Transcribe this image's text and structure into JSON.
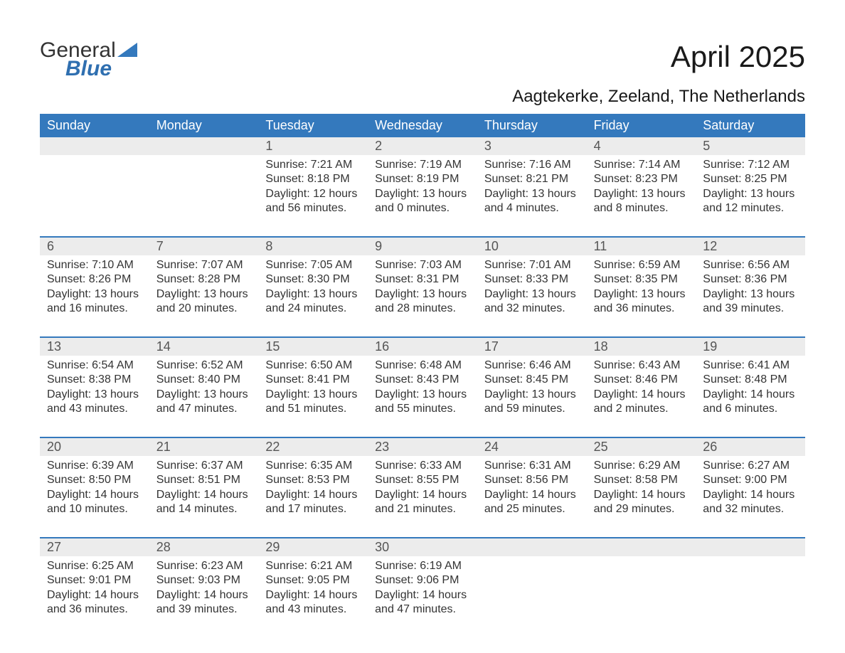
{
  "logo": {
    "word1": "General",
    "word2": "Blue",
    "tri_color": "#3479bd"
  },
  "title": "April 2025",
  "location": "Aagtekerke, Zeeland, The Netherlands",
  "colors": {
    "header_bg": "#3479bd",
    "header_fg": "#ffffff",
    "daynum_bg": "#ececec",
    "rule": "#3479bd",
    "text": "#333333",
    "daynum_text": "#555555"
  },
  "day_headers": [
    "Sunday",
    "Monday",
    "Tuesday",
    "Wednesday",
    "Thursday",
    "Friday",
    "Saturday"
  ],
  "weeks": [
    [
      null,
      null,
      {
        "n": "1",
        "sunrise": "7:21 AM",
        "sunset": "8:18 PM",
        "daylight": "12 hours and 56 minutes."
      },
      {
        "n": "2",
        "sunrise": "7:19 AM",
        "sunset": "8:19 PM",
        "daylight": "13 hours and 0 minutes."
      },
      {
        "n": "3",
        "sunrise": "7:16 AM",
        "sunset": "8:21 PM",
        "daylight": "13 hours and 4 minutes."
      },
      {
        "n": "4",
        "sunrise": "7:14 AM",
        "sunset": "8:23 PM",
        "daylight": "13 hours and 8 minutes."
      },
      {
        "n": "5",
        "sunrise": "7:12 AM",
        "sunset": "8:25 PM",
        "daylight": "13 hours and 12 minutes."
      }
    ],
    [
      {
        "n": "6",
        "sunrise": "7:10 AM",
        "sunset": "8:26 PM",
        "daylight": "13 hours and 16 minutes."
      },
      {
        "n": "7",
        "sunrise": "7:07 AM",
        "sunset": "8:28 PM",
        "daylight": "13 hours and 20 minutes."
      },
      {
        "n": "8",
        "sunrise": "7:05 AM",
        "sunset": "8:30 PM",
        "daylight": "13 hours and 24 minutes."
      },
      {
        "n": "9",
        "sunrise": "7:03 AM",
        "sunset": "8:31 PM",
        "daylight": "13 hours and 28 minutes."
      },
      {
        "n": "10",
        "sunrise": "7:01 AM",
        "sunset": "8:33 PM",
        "daylight": "13 hours and 32 minutes."
      },
      {
        "n": "11",
        "sunrise": "6:59 AM",
        "sunset": "8:35 PM",
        "daylight": "13 hours and 36 minutes."
      },
      {
        "n": "12",
        "sunrise": "6:56 AM",
        "sunset": "8:36 PM",
        "daylight": "13 hours and 39 minutes."
      }
    ],
    [
      {
        "n": "13",
        "sunrise": "6:54 AM",
        "sunset": "8:38 PM",
        "daylight": "13 hours and 43 minutes."
      },
      {
        "n": "14",
        "sunrise": "6:52 AM",
        "sunset": "8:40 PM",
        "daylight": "13 hours and 47 minutes."
      },
      {
        "n": "15",
        "sunrise": "6:50 AM",
        "sunset": "8:41 PM",
        "daylight": "13 hours and 51 minutes."
      },
      {
        "n": "16",
        "sunrise": "6:48 AM",
        "sunset": "8:43 PM",
        "daylight": "13 hours and 55 minutes."
      },
      {
        "n": "17",
        "sunrise": "6:46 AM",
        "sunset": "8:45 PM",
        "daylight": "13 hours and 59 minutes."
      },
      {
        "n": "18",
        "sunrise": "6:43 AM",
        "sunset": "8:46 PM",
        "daylight": "14 hours and 2 minutes."
      },
      {
        "n": "19",
        "sunrise": "6:41 AM",
        "sunset": "8:48 PM",
        "daylight": "14 hours and 6 minutes."
      }
    ],
    [
      {
        "n": "20",
        "sunrise": "6:39 AM",
        "sunset": "8:50 PM",
        "daylight": "14 hours and 10 minutes."
      },
      {
        "n": "21",
        "sunrise": "6:37 AM",
        "sunset": "8:51 PM",
        "daylight": "14 hours and 14 minutes."
      },
      {
        "n": "22",
        "sunrise": "6:35 AM",
        "sunset": "8:53 PM",
        "daylight": "14 hours and 17 minutes."
      },
      {
        "n": "23",
        "sunrise": "6:33 AM",
        "sunset": "8:55 PM",
        "daylight": "14 hours and 21 minutes."
      },
      {
        "n": "24",
        "sunrise": "6:31 AM",
        "sunset": "8:56 PM",
        "daylight": "14 hours and 25 minutes."
      },
      {
        "n": "25",
        "sunrise": "6:29 AM",
        "sunset": "8:58 PM",
        "daylight": "14 hours and 29 minutes."
      },
      {
        "n": "26",
        "sunrise": "6:27 AM",
        "sunset": "9:00 PM",
        "daylight": "14 hours and 32 minutes."
      }
    ],
    [
      {
        "n": "27",
        "sunrise": "6:25 AM",
        "sunset": "9:01 PM",
        "daylight": "14 hours and 36 minutes."
      },
      {
        "n": "28",
        "sunrise": "6:23 AM",
        "sunset": "9:03 PM",
        "daylight": "14 hours and 39 minutes."
      },
      {
        "n": "29",
        "sunrise": "6:21 AM",
        "sunset": "9:05 PM",
        "daylight": "14 hours and 43 minutes."
      },
      {
        "n": "30",
        "sunrise": "6:19 AM",
        "sunset": "9:06 PM",
        "daylight": "14 hours and 47 minutes."
      },
      null,
      null,
      null
    ]
  ],
  "labels": {
    "sunrise": "Sunrise: ",
    "sunset": "Sunset: ",
    "daylight": "Daylight: "
  }
}
